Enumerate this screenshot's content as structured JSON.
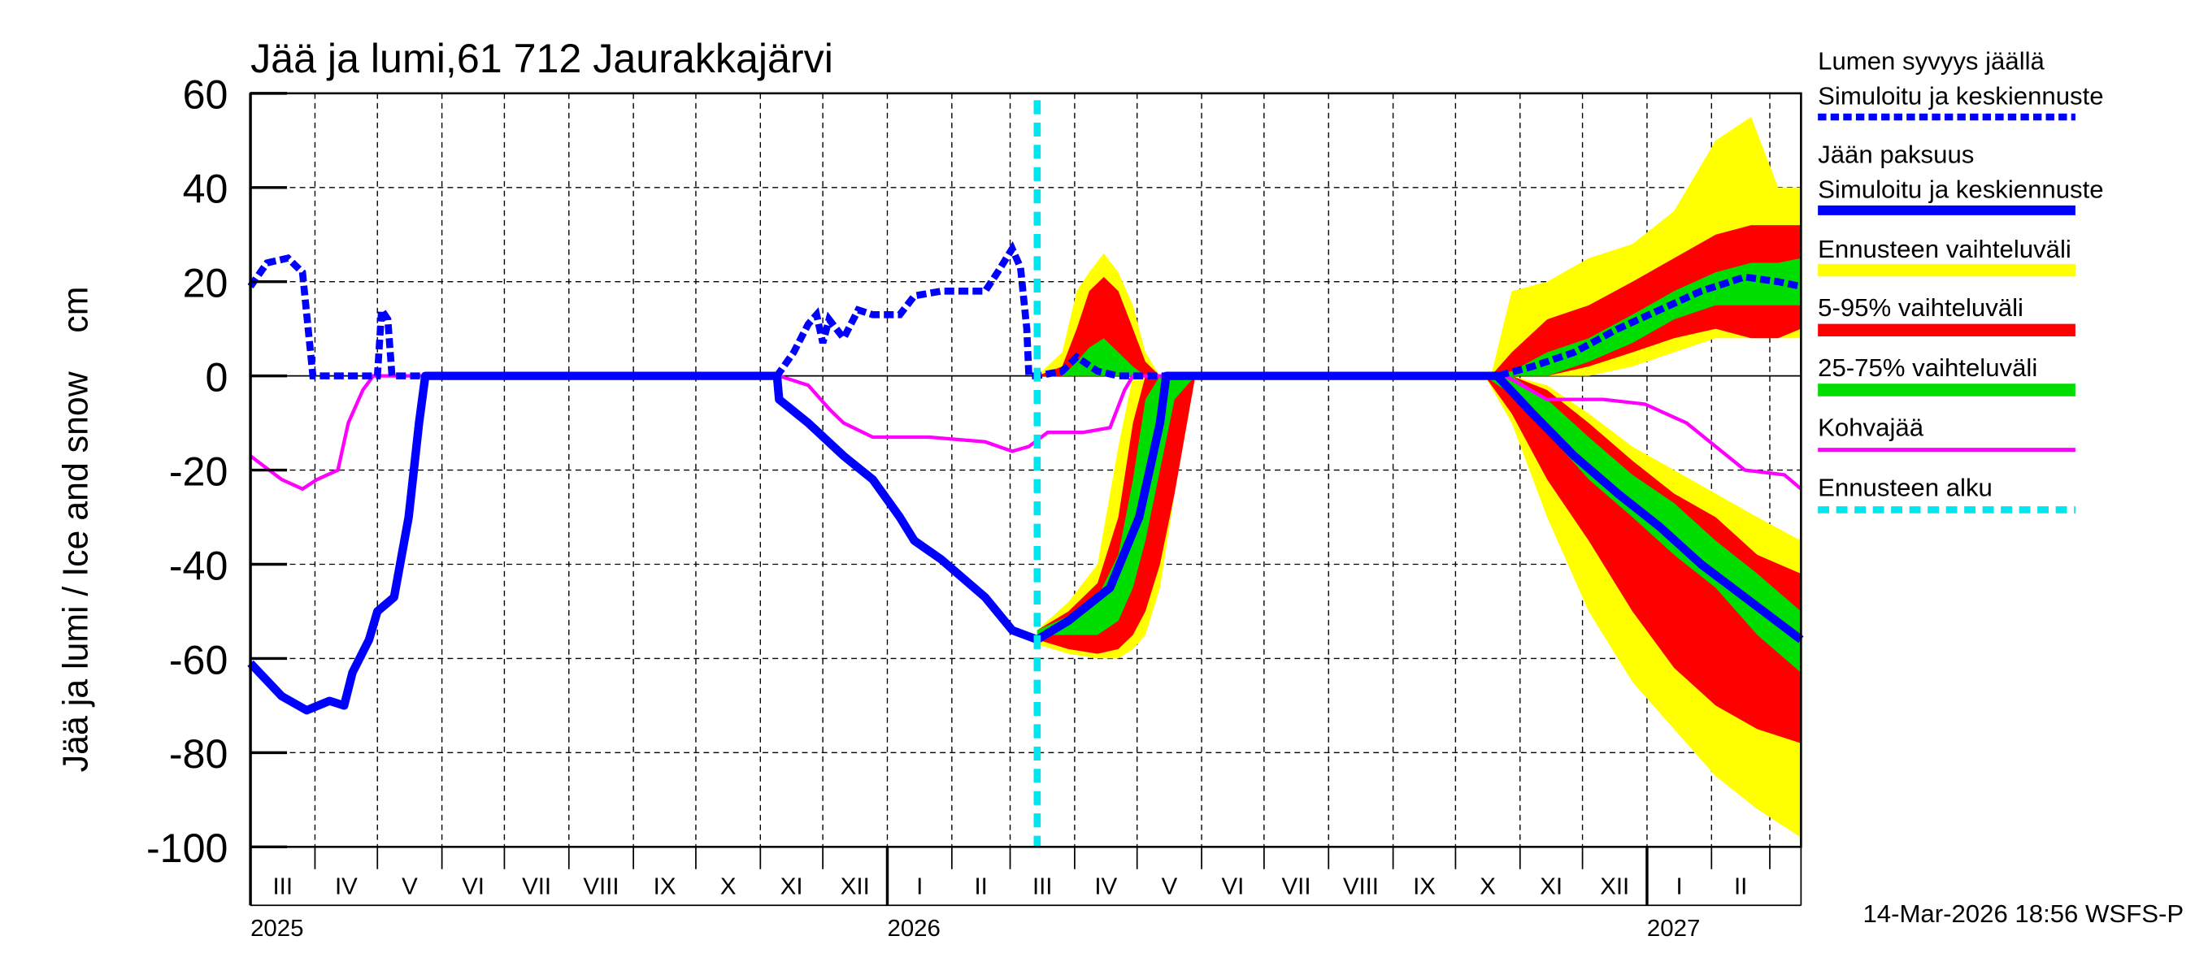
{
  "chart_data": {
    "type": "line",
    "title": "Jää ja lumi,61 712 Jaurakkajärvi",
    "ylabel": "Jää ja lumi / Ice and snow    cm",
    "ylim": [
      -100,
      60
    ],
    "yticks": [
      60,
      40,
      20,
      0,
      -20,
      -40,
      -60,
      -80,
      -100
    ],
    "xlim": [
      "2025-03-01",
      "2027-03-16"
    ],
    "month_labels": [
      "III",
      "IV",
      "V",
      "VI",
      "VII",
      "VIII",
      "IX",
      "X",
      "XI",
      "XII",
      "I",
      "II",
      "III",
      "IV",
      "V",
      "VI",
      "VII",
      "VIII",
      "IX",
      "X",
      "XI",
      "XII",
      "I",
      "II"
    ],
    "year_labels": [
      {
        "date": "2025-03-01",
        "label": "2025"
      },
      {
        "date": "2026-01-01",
        "label": "2026"
      },
      {
        "date": "2027-01-01",
        "label": "2027"
      }
    ],
    "grid": true,
    "legend_placement": "right",
    "forecast_start": "2026-03-14",
    "colors": {
      "line": "#0000ff",
      "kohva": "#ff00ff",
      "range": "#ffff00",
      "p5_95": "#ff0000",
      "p25_75": "#00dd00",
      "forecast_start": "#00e5ee"
    },
    "snow_depth": [
      [
        "2025-03-01",
        19
      ],
      [
        "2025-03-09",
        24
      ],
      [
        "2025-03-19",
        25
      ],
      [
        "2025-03-26",
        22
      ],
      [
        "2025-03-31",
        0
      ],
      [
        "2025-05-01",
        0
      ],
      [
        "2025-05-03",
        14
      ],
      [
        "2025-05-06",
        12
      ],
      [
        "2025-05-08",
        0
      ],
      [
        "2025-11-09",
        0
      ],
      [
        "2025-11-17",
        5
      ],
      [
        "2025-11-24",
        11
      ],
      [
        "2025-11-28",
        13
      ],
      [
        "2025-12-01",
        7
      ],
      [
        "2025-12-04",
        12
      ],
      [
        "2025-12-11",
        8
      ],
      [
        "2025-12-18",
        14
      ],
      [
        "2025-12-25",
        13
      ],
      [
        "2026-01-07",
        13
      ],
      [
        "2026-01-14",
        17
      ],
      [
        "2026-01-27",
        18
      ],
      [
        "2026-02-17",
        18
      ],
      [
        "2026-02-23",
        22
      ],
      [
        "2026-03-02",
        27
      ],
      [
        "2026-03-06",
        23
      ],
      [
        "2026-03-09",
        10
      ],
      [
        "2026-03-10",
        0
      ],
      [
        "2026-03-14",
        0
      ],
      [
        "2026-03-26",
        1
      ],
      [
        "2026-04-02",
        4
      ],
      [
        "2026-04-12",
        1
      ],
      [
        "2026-04-22",
        0
      ],
      [
        "2026-10-21",
        0
      ],
      [
        "2026-11-07",
        2
      ],
      [
        "2026-11-27",
        5
      ],
      [
        "2026-12-18",
        10
      ],
      [
        "2027-01-07",
        14
      ],
      [
        "2027-01-27",
        18
      ],
      [
        "2027-02-17",
        21
      ],
      [
        "2027-03-05",
        20
      ],
      [
        "2027-03-16",
        19
      ]
    ],
    "ice_thickness": [
      [
        "2025-03-01",
        -61
      ],
      [
        "2025-03-16",
        -68
      ],
      [
        "2025-03-28",
        -71
      ],
      [
        "2025-04-08",
        -69
      ],
      [
        "2025-04-15",
        -70
      ],
      [
        "2025-04-19",
        -63
      ],
      [
        "2025-04-27",
        -56
      ],
      [
        "2025-05-01",
        -50
      ],
      [
        "2025-05-09",
        -47
      ],
      [
        "2025-05-16",
        -30
      ],
      [
        "2025-05-21",
        -10
      ],
      [
        "2025-05-24",
        0
      ],
      [
        "2025-11-09",
        0
      ],
      [
        "2025-11-10",
        -5
      ],
      [
        "2025-11-24",
        -10
      ],
      [
        "2025-12-11",
        -17
      ],
      [
        "2025-12-25",
        -22
      ],
      [
        "2026-01-07",
        -30
      ],
      [
        "2026-01-14",
        -35
      ],
      [
        "2026-01-27",
        -39
      ],
      [
        "2026-02-17",
        -47
      ],
      [
        "2026-03-02",
        -54
      ],
      [
        "2026-03-14",
        -56
      ],
      [
        "2026-03-29",
        -52
      ],
      [
        "2026-04-18",
        -45
      ],
      [
        "2026-05-02",
        -30
      ],
      [
        "2026-05-12",
        -10
      ],
      [
        "2026-05-15",
        0
      ],
      [
        "2026-10-21",
        0
      ],
      [
        "2026-11-07",
        -8
      ],
      [
        "2026-11-27",
        -17
      ],
      [
        "2026-12-18",
        -25
      ],
      [
        "2027-01-07",
        -32
      ],
      [
        "2027-01-27",
        -40
      ],
      [
        "2027-02-17",
        -47
      ],
      [
        "2027-03-16",
        -56
      ]
    ],
    "kohvajaa": [
      [
        "2025-03-01",
        -17
      ],
      [
        "2025-03-16",
        -22
      ],
      [
        "2025-03-26",
        -24
      ],
      [
        "2025-04-02",
        -22
      ],
      [
        "2025-04-12",
        -20
      ],
      [
        "2025-04-17",
        -10
      ],
      [
        "2025-04-24",
        -3
      ],
      [
        "2025-04-29",
        0
      ],
      [
        "2025-11-10",
        0
      ],
      [
        "2025-11-24",
        -2
      ],
      [
        "2025-12-04",
        -7
      ],
      [
        "2025-12-11",
        -10
      ],
      [
        "2025-12-25",
        -13
      ],
      [
        "2026-01-21",
        -13
      ],
      [
        "2026-02-17",
        -14
      ],
      [
        "2026-03-02",
        -16
      ],
      [
        "2026-03-10",
        -15
      ],
      [
        "2026-03-19",
        -12
      ],
      [
        "2026-04-05",
        -12
      ],
      [
        "2026-04-18",
        -11
      ],
      [
        "2026-04-25",
        -3
      ],
      [
        "2026-04-29",
        0
      ],
      [
        "2026-10-25",
        0
      ],
      [
        "2026-11-14",
        -5
      ],
      [
        "2026-12-11",
        -5
      ],
      [
        "2026-12-31",
        -6
      ],
      [
        "2027-01-20",
        -10
      ],
      [
        "2027-02-03",
        -15
      ],
      [
        "2027-02-17",
        -20
      ],
      [
        "2027-03-08",
        -21
      ],
      [
        "2027-03-16",
        -24
      ]
    ],
    "bands": [
      {
        "name": "spring_snow",
        "points": [
          [
            "2026-03-14",
            [
              0,
              0
            ],
            [
              0,
              0
            ],
            [
              0,
              0
            ]
          ],
          [
            "2026-03-26",
            [
              0,
              5
            ],
            [
              0,
              2
            ],
            [
              0,
              0
            ]
          ],
          [
            "2026-04-02",
            [
              0,
              18
            ],
            [
              0,
              10
            ],
            [
              0,
              3
            ]
          ],
          [
            "2026-04-08",
            [
              0,
              22
            ],
            [
              0,
              18
            ],
            [
              0,
              6
            ]
          ],
          [
            "2026-04-15",
            [
              0,
              26
            ],
            [
              0,
              21
            ],
            [
              0,
              8
            ]
          ],
          [
            "2026-04-22",
            [
              0,
              22
            ],
            [
              0,
              18
            ],
            [
              0,
              5
            ]
          ],
          [
            "2026-04-29",
            [
              0,
              15
            ],
            [
              0,
              10
            ],
            [
              0,
              2
            ]
          ],
          [
            "2026-05-05",
            [
              0,
              5
            ],
            [
              0,
              3
            ],
            [
              0,
              0
            ]
          ],
          [
            "2026-05-12",
            [
              0,
              0
            ],
            [
              0,
              0
            ],
            [
              0,
              0
            ]
          ]
        ]
      },
      {
        "name": "spring_ice",
        "points": [
          [
            "2026-03-14",
            [
              -57,
              -54
            ],
            [
              -56,
              -54
            ],
            [
              -55,
              -54
            ]
          ],
          [
            "2026-03-29",
            [
              -59,
              -48
            ],
            [
              -58,
              -50
            ],
            [
              -55,
              -51
            ]
          ],
          [
            "2026-04-12",
            [
              -60,
              -40
            ],
            [
              -59,
              -44
            ],
            [
              -55,
              -47
            ]
          ],
          [
            "2026-04-22",
            [
              -60,
              -15
            ],
            [
              -58,
              -30
            ],
            [
              -52,
              -38
            ]
          ],
          [
            "2026-04-29",
            [
              -58,
              0
            ],
            [
              -55,
              -10
            ],
            [
              -45,
              -22
            ]
          ],
          [
            "2026-05-05",
            [
              -55,
              0
            ],
            [
              -50,
              0
            ],
            [
              -35,
              -5
            ]
          ],
          [
            "2026-05-12",
            [
              -45,
              0
            ],
            [
              -40,
              0
            ],
            [
              -20,
              0
            ]
          ],
          [
            "2026-05-19",
            [
              -25,
              0
            ],
            [
              -25,
              0
            ],
            [
              -5,
              0
            ]
          ],
          [
            "2026-05-29",
            [
              0,
              0
            ],
            [
              0,
              0
            ],
            [
              0,
              0
            ]
          ]
        ]
      },
      {
        "name": "autumn_snow",
        "points": [
          [
            "2026-10-18",
            [
              0,
              0
            ],
            [
              0,
              0
            ],
            [
              0,
              0
            ]
          ],
          [
            "2026-10-28",
            [
              0,
              18
            ],
            [
              0,
              5
            ],
            [
              0,
              1
            ]
          ],
          [
            "2026-11-14",
            [
              0,
              20
            ],
            [
              0,
              12
            ],
            [
              0,
              5
            ]
          ],
          [
            "2026-12-04",
            [
              0,
              25
            ],
            [
              2,
              15
            ],
            [
              3,
              8
            ]
          ],
          [
            "2026-12-25",
            [
              2,
              28
            ],
            [
              5,
              20
            ],
            [
              7,
              13
            ]
          ],
          [
            "2027-01-14",
            [
              5,
              35
            ],
            [
              8,
              25
            ],
            [
              12,
              18
            ]
          ],
          [
            "2027-02-03",
            [
              8,
              50
            ],
            [
              10,
              30
            ],
            [
              15,
              22
            ]
          ],
          [
            "2027-02-20",
            [
              8,
              55
            ],
            [
              8,
              32
            ],
            [
              15,
              24
            ]
          ],
          [
            "2027-03-05",
            [
              8,
              40
            ],
            [
              8,
              32
            ],
            [
              15,
              24
            ]
          ],
          [
            "2027-03-16",
            [
              8,
              40
            ],
            [
              10,
              32
            ],
            [
              15,
              25
            ]
          ]
        ]
      },
      {
        "name": "autumn_ice",
        "points": [
          [
            "2026-10-15",
            [
              0,
              0
            ],
            [
              0,
              0
            ],
            [
              0,
              0
            ]
          ],
          [
            "2026-10-28",
            [
              -10,
              0
            ],
            [
              -8,
              0
            ],
            [
              -4,
              0
            ]
          ],
          [
            "2026-11-14",
            [
              -30,
              -2
            ],
            [
              -22,
              -3
            ],
            [
              -12,
              -5
            ]
          ],
          [
            "2026-12-04",
            [
              -50,
              -8
            ],
            [
              -35,
              -10
            ],
            [
              -22,
              -13
            ]
          ],
          [
            "2026-12-25",
            [
              -65,
              -15
            ],
            [
              -50,
              -18
            ],
            [
              -30,
              -21
            ]
          ],
          [
            "2027-01-14",
            [
              -75,
              -20
            ],
            [
              -62,
              -25
            ],
            [
              -38,
              -27
            ]
          ],
          [
            "2027-02-03",
            [
              -85,
              -25
            ],
            [
              -70,
              -30
            ],
            [
              -45,
              -35
            ]
          ],
          [
            "2027-02-23",
            [
              -92,
              -30
            ],
            [
              -75,
              -38
            ],
            [
              -55,
              -42
            ]
          ],
          [
            "2027-03-16",
            [
              -98,
              -35
            ],
            [
              -78,
              -42
            ],
            [
              -63,
              -50
            ]
          ]
        ]
      }
    ]
  },
  "legend": {
    "snow_title": "Lumen syvyys jäällä",
    "snow_sub": "Simuloitu ja keskiennuste",
    "ice_title": "Jään paksuus",
    "ice_sub": "Simuloitu ja keskiennuste",
    "range": "Ennusteen vaihteluväli",
    "p5_95": "5-95% vaihteluväli",
    "p25_75": "25-75% vaihteluväli",
    "kohva": "Kohvajää",
    "forecast_start": "Ennusteen alku"
  },
  "footer": "14-Mar-2026 18:56 WSFS-P"
}
